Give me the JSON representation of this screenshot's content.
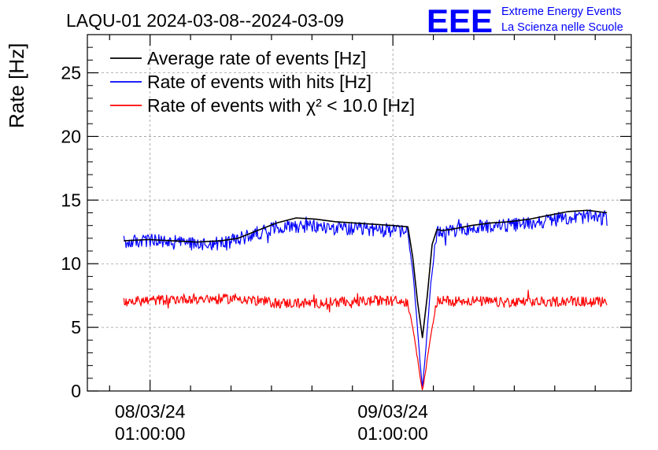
{
  "header": {
    "title": "LAQU-01 2024-03-08--2024-03-09",
    "logo_text": "EEE",
    "logo_line1": "Extreme Energy Events",
    "logo_line2": "La Scienza nelle Scuole"
  },
  "colors": {
    "average": "#000000",
    "hits": "#0000ff",
    "chi2": "#ff0000",
    "logo": "#0000ff",
    "grid": "#9a9a9a"
  },
  "chart_data": {
    "type": "line",
    "title": "LAQU-01 2024-03-08--2024-03-09",
    "xlabel": "",
    "ylabel": "Rate [Hz]",
    "ylim": [
      0,
      28
    ],
    "yticks": [
      0,
      5,
      10,
      15,
      20,
      25
    ],
    "xlim": [
      0.0,
      2.24
    ],
    "xticks": [
      {
        "x": 0.2583,
        "date": "08/03/24",
        "time": "01:00:00"
      },
      {
        "x": 1.2583,
        "date": "09/03/24",
        "time": "01:00:00"
      }
    ],
    "grid": true,
    "legend_position": "top-left",
    "series": [
      {
        "key": "avg",
        "name": "Average rate of events [Hz]",
        "color": "#000000",
        "x": [
          0.15,
          0.25,
          0.35,
          0.45,
          0.55,
          0.62,
          0.7,
          0.78,
          0.86,
          0.94,
          1.02,
          1.1,
          1.18,
          1.26,
          1.32,
          1.34,
          1.36,
          1.38,
          1.4,
          1.42,
          1.44,
          1.46,
          1.5,
          1.58,
          1.66,
          1.74,
          1.82,
          1.9,
          1.98,
          2.06,
          2.14
        ],
        "y": [
          11.8,
          11.9,
          11.8,
          11.7,
          11.8,
          12.0,
          12.6,
          13.2,
          13.6,
          13.5,
          13.3,
          13.2,
          13.1,
          13.0,
          12.9,
          10.5,
          7.0,
          4.2,
          7.5,
          11.5,
          12.7,
          12.6,
          12.7,
          13.0,
          13.2,
          13.3,
          13.5,
          13.8,
          14.1,
          14.2,
          14.0
        ]
      },
      {
        "key": "hits",
        "name": "Rate of events with hits [Hz]",
        "color": "#0000ff",
        "noise": 0.55,
        "x": [
          0.15,
          0.25,
          0.35,
          0.45,
          0.55,
          0.62,
          0.7,
          0.78,
          0.86,
          0.94,
          1.02,
          1.1,
          1.18,
          1.26,
          1.32,
          1.345,
          1.365,
          1.38,
          1.395,
          1.415,
          1.44,
          1.46,
          1.5,
          1.58,
          1.66,
          1.74,
          1.82,
          1.9,
          1.98,
          2.06,
          2.14
        ],
        "y": [
          11.7,
          11.8,
          11.7,
          11.6,
          11.6,
          11.9,
          12.4,
          12.9,
          13.0,
          12.9,
          12.8,
          12.7,
          12.7,
          12.6,
          12.6,
          8.5,
          3.5,
          0.3,
          3.5,
          8.5,
          12.4,
          12.5,
          12.6,
          12.8,
          13.0,
          13.0,
          13.2,
          13.4,
          13.6,
          13.7,
          13.5
        ]
      },
      {
        "key": "chi2",
        "name": "Rate of events with χ² < 10.0 [Hz]",
        "color": "#ff0000",
        "noise": 0.4,
        "x": [
          0.15,
          0.25,
          0.35,
          0.45,
          0.55,
          0.62,
          0.7,
          0.78,
          0.86,
          0.94,
          1.02,
          1.1,
          1.18,
          1.26,
          1.32,
          1.345,
          1.365,
          1.38,
          1.395,
          1.415,
          1.44,
          1.46,
          1.5,
          1.58,
          1.66,
          1.74,
          1.82,
          1.9,
          1.98,
          2.06,
          2.14
        ],
        "y": [
          7.0,
          7.1,
          7.2,
          7.3,
          7.2,
          7.3,
          7.1,
          6.9,
          6.9,
          6.9,
          7.0,
          7.0,
          7.1,
          7.1,
          7.0,
          4.5,
          1.8,
          0.1,
          1.8,
          4.5,
          7.0,
          7.1,
          7.1,
          7.1,
          7.0,
          6.9,
          7.0,
          7.0,
          7.1,
          7.0,
          7.0
        ]
      }
    ]
  }
}
